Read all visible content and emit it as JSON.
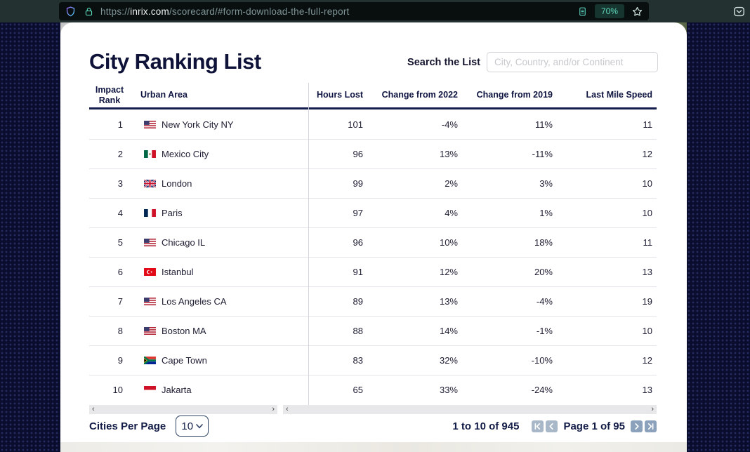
{
  "browser": {
    "url_prefix": "https://",
    "url_domain": "inrix.com",
    "url_path": "/scorecard/#form-download-the-full-report",
    "zoom_badge": "70%"
  },
  "page": {
    "title": "City Ranking List",
    "search_label": "Search the List",
    "search_placeholder": "City, Country, and/or Continent"
  },
  "table": {
    "columns": [
      "Impact Rank",
      "Urban Area",
      "Hours Lost",
      "Change from 2022",
      "Change from 2019",
      "Last Mile Speed"
    ],
    "rows": [
      {
        "rank": "1",
        "flag": "us",
        "city": "New York City NY",
        "hours_lost": "101",
        "change_2022": "-4%",
        "change_2019": "11%",
        "last_mile_speed": "11"
      },
      {
        "rank": "2",
        "flag": "mx",
        "city": "Mexico City",
        "hours_lost": "96",
        "change_2022": "13%",
        "change_2019": "-11%",
        "last_mile_speed": "12"
      },
      {
        "rank": "3",
        "flag": "gb",
        "city": "London",
        "hours_lost": "99",
        "change_2022": "2%",
        "change_2019": "3%",
        "last_mile_speed": "10"
      },
      {
        "rank": "4",
        "flag": "fr",
        "city": "Paris",
        "hours_lost": "97",
        "change_2022": "4%",
        "change_2019": "1%",
        "last_mile_speed": "10"
      },
      {
        "rank": "5",
        "flag": "us",
        "city": "Chicago IL",
        "hours_lost": "96",
        "change_2022": "10%",
        "change_2019": "18%",
        "last_mile_speed": "11"
      },
      {
        "rank": "6",
        "flag": "tr",
        "city": "Istanbul",
        "hours_lost": "91",
        "change_2022": "12%",
        "change_2019": "20%",
        "last_mile_speed": "13"
      },
      {
        "rank": "7",
        "flag": "us",
        "city": "Los Angeles CA",
        "hours_lost": "89",
        "change_2022": "13%",
        "change_2019": "-4%",
        "last_mile_speed": "19"
      },
      {
        "rank": "8",
        "flag": "us",
        "city": "Boston MA",
        "hours_lost": "88",
        "change_2022": "14%",
        "change_2019": "-1%",
        "last_mile_speed": "10"
      },
      {
        "rank": "9",
        "flag": "za",
        "city": "Cape Town",
        "hours_lost": "83",
        "change_2022": "32%",
        "change_2019": "-10%",
        "last_mile_speed": "12"
      },
      {
        "rank": "10",
        "flag": "id",
        "city": "Jakarta",
        "hours_lost": "65",
        "change_2022": "33%",
        "change_2019": "-24%",
        "last_mile_speed": "13"
      }
    ]
  },
  "scrollbar": {
    "left_arrow": "‹",
    "right_arrow": "›"
  },
  "footer": {
    "cities_per_page_label": "Cities Per Page",
    "per_page_value": "10",
    "range_text": "1 to 10 of 945",
    "page_text": "Page 1 of 95"
  },
  "colors": {
    "navy": "#101441",
    "page_background": "#0a0d2e",
    "teal_accent": "#5fd8bd",
    "pagination_button_light": "#a9b8c9",
    "pagination_button_dark": "#8ca2bc"
  }
}
